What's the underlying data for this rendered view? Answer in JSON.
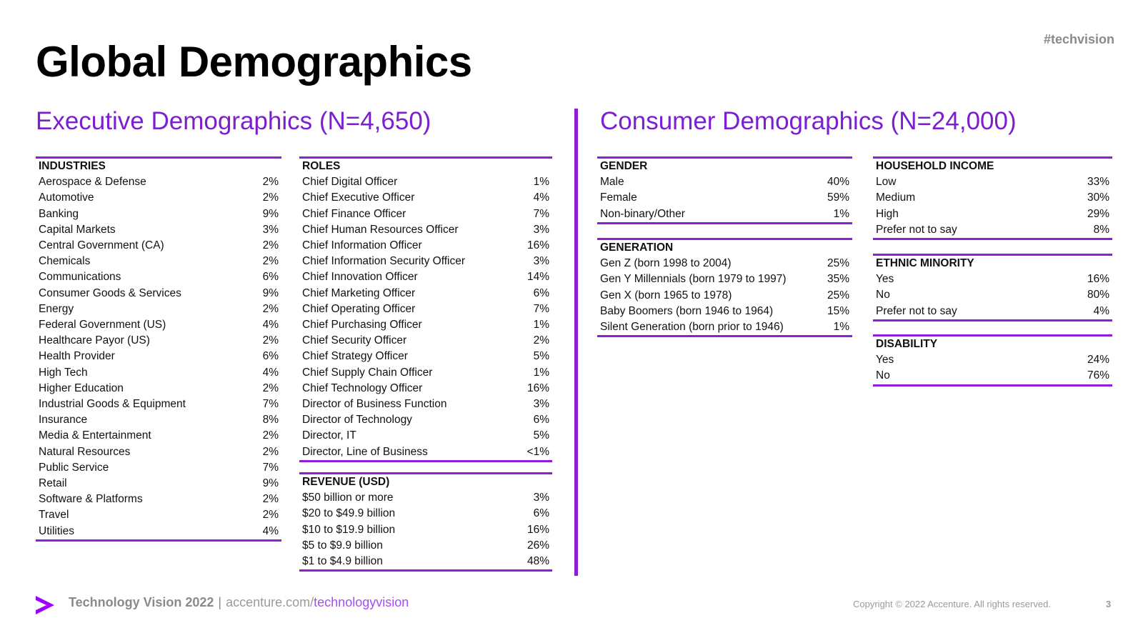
{
  "hashtag": "#techvision",
  "title": "Global Demographics",
  "executive": {
    "title": "Executive Demographics (N=4,650)",
    "industries": {
      "header": "INDUSTRIES",
      "rows": [
        {
          "label": "Aerospace & Defense",
          "value": "2%"
        },
        {
          "label": "Automotive",
          "value": "2%"
        },
        {
          "label": "Banking",
          "value": "9%"
        },
        {
          "label": "Capital Markets",
          "value": "3%"
        },
        {
          "label": "Central Government (CA)",
          "value": "2%"
        },
        {
          "label": "Chemicals",
          "value": "2%"
        },
        {
          "label": "Communications",
          "value": "6%"
        },
        {
          "label": "Consumer Goods & Services",
          "value": "9%"
        },
        {
          "label": "Energy",
          "value": "2%"
        },
        {
          "label": "Federal Government (US)",
          "value": "4%"
        },
        {
          "label": "Healthcare Payor (US)",
          "value": "2%"
        },
        {
          "label": "Health Provider",
          "value": "6%"
        },
        {
          "label": "High Tech",
          "value": "4%"
        },
        {
          "label": "Higher Education",
          "value": "2%"
        },
        {
          "label": "Industrial Goods & Equipment",
          "value": "7%"
        },
        {
          "label": "Insurance",
          "value": "8%"
        },
        {
          "label": "Media & Entertainment",
          "value": "2%"
        },
        {
          "label": "Natural Resources",
          "value": "2%"
        },
        {
          "label": "Public Service",
          "value": "7%"
        },
        {
          "label": "Retail",
          "value": "9%"
        },
        {
          "label": "Software & Platforms",
          "value": "2%"
        },
        {
          "label": "Travel",
          "value": "2%"
        },
        {
          "label": "Utilities",
          "value": "4%"
        }
      ]
    },
    "roles": {
      "header": "ROLES",
      "rows": [
        {
          "label": "Chief Digital Officer",
          "value": "1%"
        },
        {
          "label": "Chief Executive Officer",
          "value": "4%"
        },
        {
          "label": "Chief Finance Officer",
          "value": "7%"
        },
        {
          "label": "Chief Human Resources Officer",
          "value": "3%"
        },
        {
          "label": "Chief Information Officer",
          "value": "16%"
        },
        {
          "label": "Chief Information Security Officer",
          "value": "3%"
        },
        {
          "label": "Chief Innovation Officer",
          "value": "14%"
        },
        {
          "label": "Chief Marketing Officer",
          "value": "6%"
        },
        {
          "label": "Chief Operating Officer",
          "value": "7%"
        },
        {
          "label": "Chief Purchasing Officer",
          "value": "1%"
        },
        {
          "label": "Chief Security Officer",
          "value": "2%"
        },
        {
          "label": "Chief Strategy Officer",
          "value": "5%"
        },
        {
          "label": "Chief Supply Chain Officer",
          "value": "1%"
        },
        {
          "label": "Chief Technology Officer",
          "value": "16%"
        },
        {
          "label": "Director of Business Function",
          "value": "3%"
        },
        {
          "label": "Director of Technology",
          "value": "6%"
        },
        {
          "label": "Director, IT",
          "value": "5%"
        },
        {
          "label": "Director, Line of Business",
          "value": "<1%"
        }
      ]
    },
    "revenue": {
      "header": "REVENUE (USD)",
      "rows": [
        {
          "label": "$50 billion or more",
          "value": "3%"
        },
        {
          "label": "$20 to $49.9 billion",
          "value": "6%"
        },
        {
          "label": "$10 to $19.9 billion",
          "value": "16%"
        },
        {
          "label": "$5 to $9.9 billion",
          "value": "26%"
        },
        {
          "label": "$1 to $4.9 billion",
          "value": "48%"
        }
      ]
    }
  },
  "consumer": {
    "title": "Consumer Demographics (N=24,000)",
    "gender": {
      "header": "GENDER",
      "rows": [
        {
          "label": "Male",
          "value": "40%"
        },
        {
          "label": "Female",
          "value": "59%"
        },
        {
          "label": "Non-binary/Other",
          "value": "1%"
        }
      ]
    },
    "generation": {
      "header": "GENERATION",
      "rows": [
        {
          "label": "Gen Z (born 1998 to 2004)",
          "value": "25%"
        },
        {
          "label": "Gen Y Millennials (born 1979 to 1997)",
          "value": "35%"
        },
        {
          "label": "Gen X (born 1965 to 1978)",
          "value": "25%"
        },
        {
          "label": "Baby Boomers (born 1946 to 1964)",
          "value": "15%"
        },
        {
          "label": "Silent Generation (born prior to 1946)",
          "value": "1%"
        }
      ]
    },
    "household_income": {
      "header": "HOUSEHOLD INCOME",
      "rows": [
        {
          "label": "Low",
          "value": "33%"
        },
        {
          "label": "Medium",
          "value": "30%"
        },
        {
          "label": "High",
          "value": "29%"
        },
        {
          "label": "Prefer not to say",
          "value": "8%"
        }
      ]
    },
    "ethnic_minority": {
      "header": "ETHNIC MINORITY",
      "rows": [
        {
          "label": "Yes",
          "value": "16%"
        },
        {
          "label": "No",
          "value": "80%"
        },
        {
          "label": "Prefer not to say",
          "value": "4%"
        }
      ]
    },
    "disability": {
      "header": "DISABILITY",
      "rows": [
        {
          "label": "Yes",
          "value": "24%"
        },
        {
          "label": "No",
          "value": "76%"
        }
      ]
    }
  },
  "footer": {
    "brand": "Technology Vision 2022",
    "separator": "|",
    "url_domain": "accenture.com/",
    "url_path": "technologyvision",
    "copyright": "Copyright © 2022 Accenture. All rights reserved.",
    "page_number": "3"
  },
  "colors": {
    "accent_purple": "#8f1dd6",
    "title_purple": "#7b1fd1",
    "footer_gray": "#8a8a8a"
  },
  "icons": {
    "logo": "accenture-greater-than-logo"
  }
}
